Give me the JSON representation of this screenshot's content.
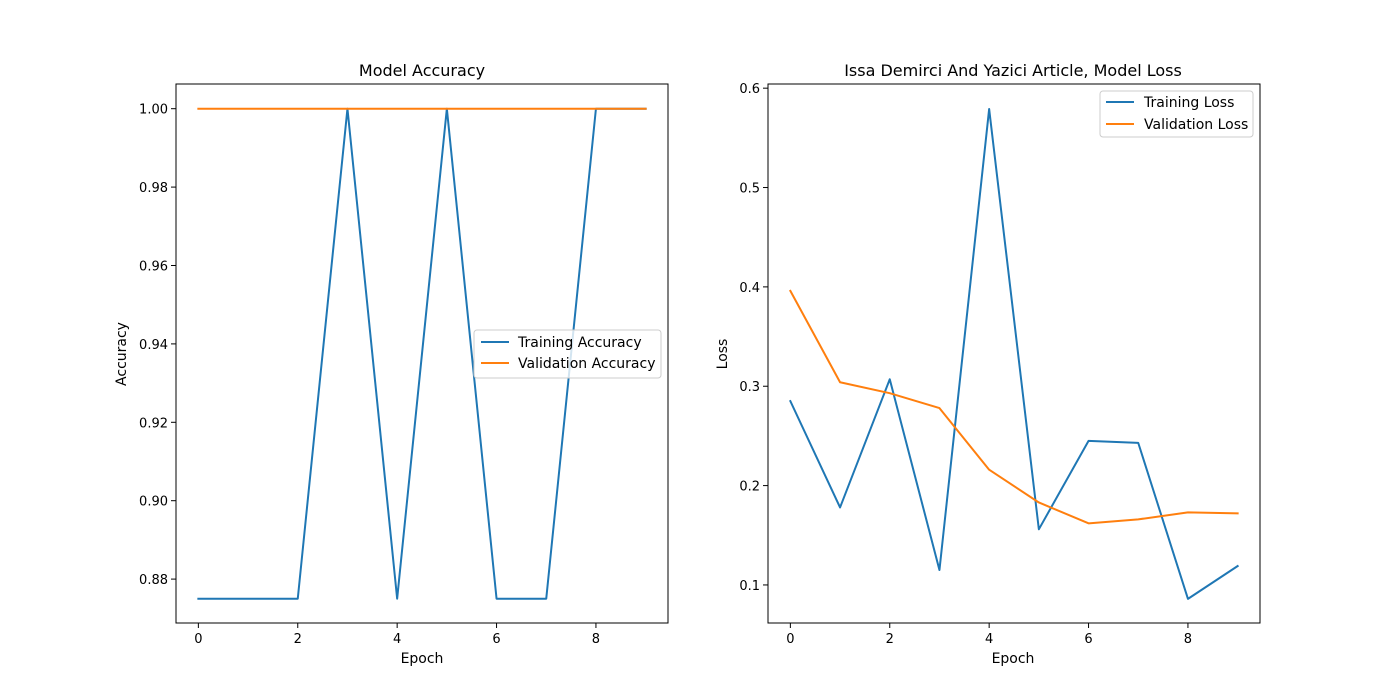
{
  "chart_data": [
    {
      "type": "line",
      "title": "Model Accuracy",
      "xlabel": "Epoch",
      "ylabel": "Accuracy",
      "xlim": [
        -0.45,
        9.45
      ],
      "ylim": [
        0.8688,
        1.0063
      ],
      "xticks": [
        0,
        2,
        4,
        6,
        8
      ],
      "xtick_labels": [
        "0",
        "2",
        "4",
        "6",
        "8"
      ],
      "yticks": [
        0.88,
        0.9,
        0.92,
        0.94,
        0.96,
        0.98,
        1.0
      ],
      "ytick_labels": [
        "0.88",
        "0.90",
        "0.92",
        "0.94",
        "0.96",
        "0.98",
        "1.00"
      ],
      "legend_position": "center-right",
      "x": [
        0,
        1,
        2,
        3,
        4,
        5,
        6,
        7,
        8,
        9
      ],
      "series": [
        {
          "name": "Training Accuracy",
          "color": "#1f77b4",
          "values": [
            0.875,
            0.875,
            0.875,
            1.0,
            0.875,
            1.0,
            0.875,
            0.875,
            1.0,
            1.0
          ]
        },
        {
          "name": "Validation Accuracy",
          "color": "#ff7f0e",
          "values": [
            1.0,
            1.0,
            1.0,
            1.0,
            1.0,
            1.0,
            1.0,
            1.0,
            1.0,
            1.0
          ]
        }
      ]
    },
    {
      "type": "line",
      "title": "Issa Demirci And Yazici Article, Model Loss",
      "xlabel": "Epoch",
      "ylabel": "Loss",
      "xlim": [
        -0.45,
        9.45
      ],
      "ylim": [
        0.0617,
        0.6042
      ],
      "xticks": [
        0,
        2,
        4,
        6,
        8
      ],
      "xtick_labels": [
        "0",
        "2",
        "4",
        "6",
        "8"
      ],
      "yticks": [
        0.1,
        0.2,
        0.3,
        0.4,
        0.5,
        0.6
      ],
      "ytick_labels": [
        "0.1",
        "0.2",
        "0.3",
        "0.4",
        "0.5",
        "0.6"
      ],
      "legend_position": "top-right",
      "x": [
        0,
        1,
        2,
        3,
        4,
        5,
        6,
        7,
        8,
        9
      ],
      "series": [
        {
          "name": "Training Loss",
          "color": "#1f77b4",
          "values": [
            0.285,
            0.178,
            0.307,
            0.115,
            0.579,
            0.156,
            0.245,
            0.243,
            0.086,
            0.119
          ]
        },
        {
          "name": "Validation Loss",
          "color": "#ff7f0e",
          "values": [
            0.396,
            0.304,
            0.293,
            0.278,
            0.216,
            0.183,
            0.162,
            0.166,
            0.173,
            0.172
          ]
        }
      ]
    }
  ]
}
